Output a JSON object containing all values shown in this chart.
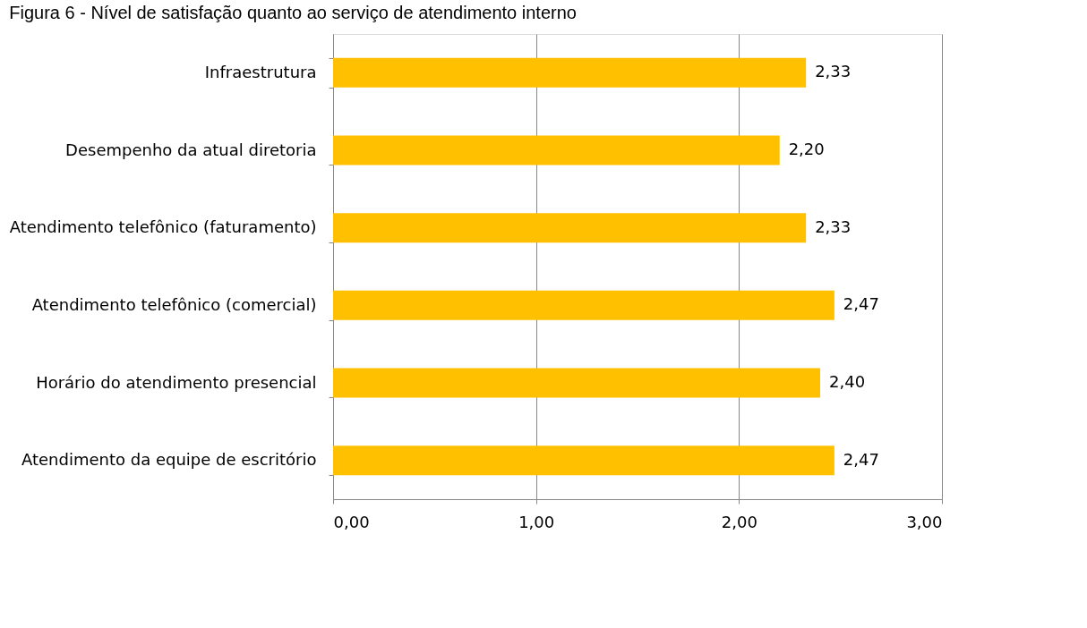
{
  "chart_data": {
    "type": "bar",
    "orientation": "horizontal",
    "title": "Figura 6 - Nível de satisfação quanto ao serviço de atendimento interno",
    "categories": [
      "Infraestrutura",
      "Desempenho da atual diretoria",
      "Atendimento telefônico (faturamento)",
      "Atendimento telefônico (comercial)",
      "Horário do atendimento presencial",
      "Atendimento da equipe de escritório"
    ],
    "values": [
      2.33,
      2.2,
      2.33,
      2.47,
      2.4,
      2.47
    ],
    "value_labels": [
      "2,33",
      "2,20",
      "2,33",
      "2,47",
      "2,40",
      "2,47"
    ],
    "color": "#ffc000",
    "xlim": [
      0,
      3
    ],
    "xticks": [
      {
        "value": 0,
        "label": "0,00"
      },
      {
        "value": 1,
        "label": "1,00"
      },
      {
        "value": 2,
        "label": "2,00"
      },
      {
        "value": 3,
        "label": "3,00"
      }
    ],
    "grid": "x"
  }
}
